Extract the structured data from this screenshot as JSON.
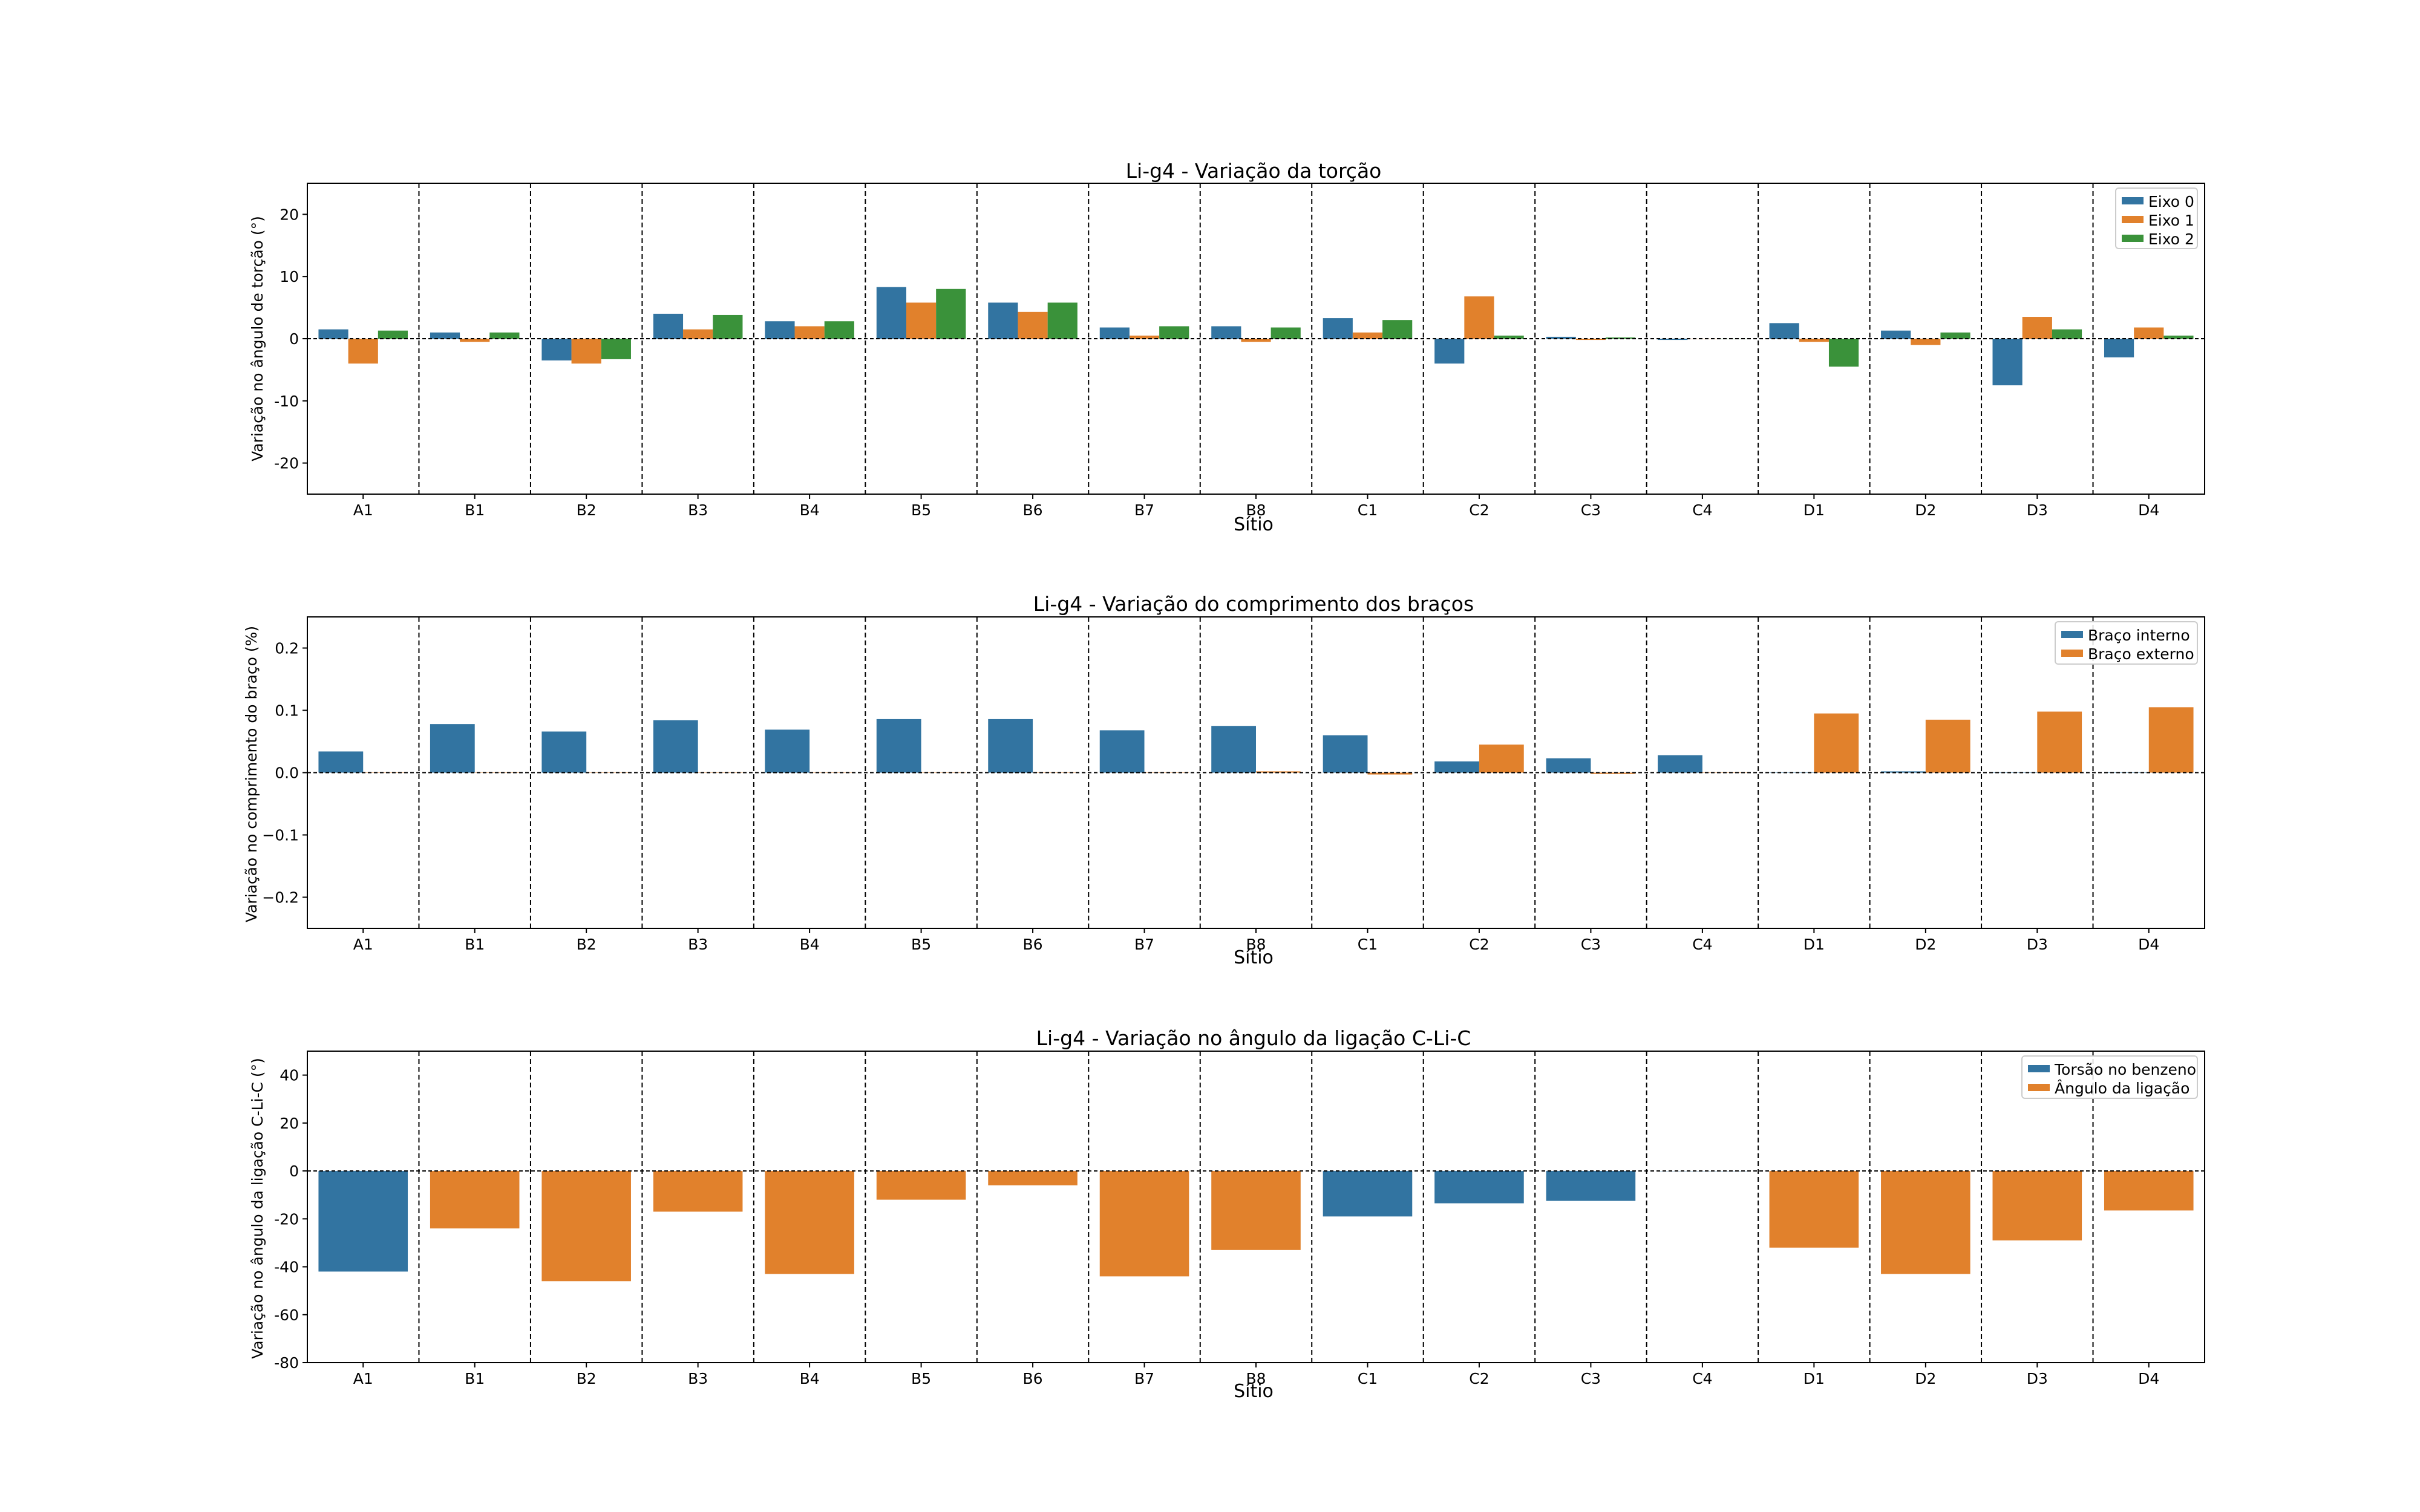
{
  "colors": {
    "blue": "#3274a1",
    "orange": "#e1812c",
    "green": "#3a923a"
  },
  "chart_data": [
    {
      "type": "bar",
      "title": "Li-g4 - Variação da torção",
      "xlabel": "Sítio",
      "ylabel": "Variação no ângulo de torção (°)",
      "ylim": [
        -25,
        25
      ],
      "yticks": [
        -20,
        -10,
        0,
        10,
        20
      ],
      "legend_position": "top-right",
      "grid": false,
      "categories": [
        "A1",
        "B1",
        "B2",
        "B3",
        "B4",
        "B5",
        "B6",
        "B7",
        "B8",
        "C1",
        "C2",
        "C3",
        "C4",
        "D1",
        "D2",
        "D3",
        "D4"
      ],
      "series": [
        {
          "name": "Eixo 0",
          "color": "#3274a1",
          "values": [
            1.5,
            1.0,
            -3.5,
            4.0,
            2.8,
            8.3,
            5.8,
            1.8,
            2.0,
            3.3,
            -4.0,
            0.3,
            -0.2,
            2.5,
            1.3,
            -7.5,
            -3.0
          ]
        },
        {
          "name": "Eixo 1",
          "color": "#e1812c",
          "values": [
            -4.0,
            -0.5,
            -4.0,
            1.5,
            2.0,
            5.8,
            4.3,
            0.5,
            -0.5,
            1.0,
            6.8,
            -0.2,
            0.0,
            -0.5,
            -1.0,
            3.5,
            1.8
          ]
        },
        {
          "name": "Eixo 2",
          "color": "#3a923a",
          "values": [
            1.3,
            1.0,
            -3.3,
            3.8,
            2.8,
            8.0,
            5.8,
            2.0,
            1.8,
            3.0,
            0.5,
            0.2,
            0.0,
            -4.5,
            1.0,
            1.5,
            0.5
          ]
        }
      ]
    },
    {
      "type": "bar",
      "title": "Li-g4 - Variação do comprimento dos braços",
      "xlabel": "Sítio",
      "ylabel": "Variação no comprimento do braço (%)",
      "ylim": [
        -0.25,
        0.25
      ],
      "yticks": [
        -0.2,
        -0.1,
        0.0,
        0.1,
        0.2
      ],
      "ytick_labels": [
        "−0.2",
        "−0.1",
        "0.0",
        "0.1",
        "0.2"
      ],
      "legend_position": "top-right",
      "grid": false,
      "categories": [
        "A1",
        "B1",
        "B2",
        "B3",
        "B4",
        "B5",
        "B6",
        "B7",
        "B8",
        "C1",
        "C2",
        "C3",
        "C4",
        "D1",
        "D2",
        "D3",
        "D4"
      ],
      "series": [
        {
          "name": "Braço interno",
          "color": "#3274a1",
          "values": [
            0.034,
            0.078,
            0.066,
            0.084,
            0.069,
            0.086,
            0.086,
            0.068,
            0.075,
            0.06,
            0.018,
            0.023,
            0.028,
            0.0,
            0.002,
            0.0,
            0.0
          ]
        },
        {
          "name": "Braço externo",
          "color": "#e1812c",
          "values": [
            0.0,
            0.0,
            0.0,
            0.0,
            0.0,
            0.0,
            0.0,
            0.0,
            0.002,
            -0.003,
            0.045,
            -0.002,
            0.0,
            0.095,
            0.085,
            0.098,
            0.105
          ]
        }
      ]
    },
    {
      "type": "bar",
      "title": "Li-g4 - Variação no ângulo da ligação C-Li-C",
      "xlabel": "Sítio",
      "ylabel": "Variação no ângulo da ligação C-Li-C (°)",
      "ylim": [
        -80,
        50
      ],
      "yticks": [
        -80,
        -60,
        -40,
        -20,
        0,
        20,
        40
      ],
      "legend_position": "top-right",
      "grid": false,
      "categories": [
        "A1",
        "B1",
        "B2",
        "B3",
        "B4",
        "B5",
        "B6",
        "B7",
        "B8",
        "C1",
        "C2",
        "C3",
        "C4",
        "D1",
        "D2",
        "D3",
        "D4"
      ],
      "series": [
        {
          "name": "Torsão no benzeno",
          "color": "#3274a1"
        },
        {
          "name": "Ângulo da ligação",
          "color": "#e1812c"
        }
      ],
      "values": [
        -42,
        -24,
        -46,
        -17,
        -43,
        -12,
        -6,
        -44,
        -33,
        -19,
        -13.5,
        -12.5,
        0,
        -32,
        -43,
        -29,
        -16.5
      ],
      "bar_series": [
        "Torsão no benzeno",
        "Ângulo da ligação",
        "Ângulo da ligação",
        "Ângulo da ligação",
        "Ângulo da ligação",
        "Ângulo da ligação",
        "Ângulo da ligação",
        "Ângulo da ligação",
        "Ângulo da ligação",
        "Torsão no benzeno",
        "Torsão no benzeno",
        "Torsão no benzeno",
        "Torsão no benzeno",
        "Ângulo da ligação",
        "Ângulo da ligação",
        "Ângulo da ligação",
        "Ângulo da ligação"
      ]
    }
  ]
}
